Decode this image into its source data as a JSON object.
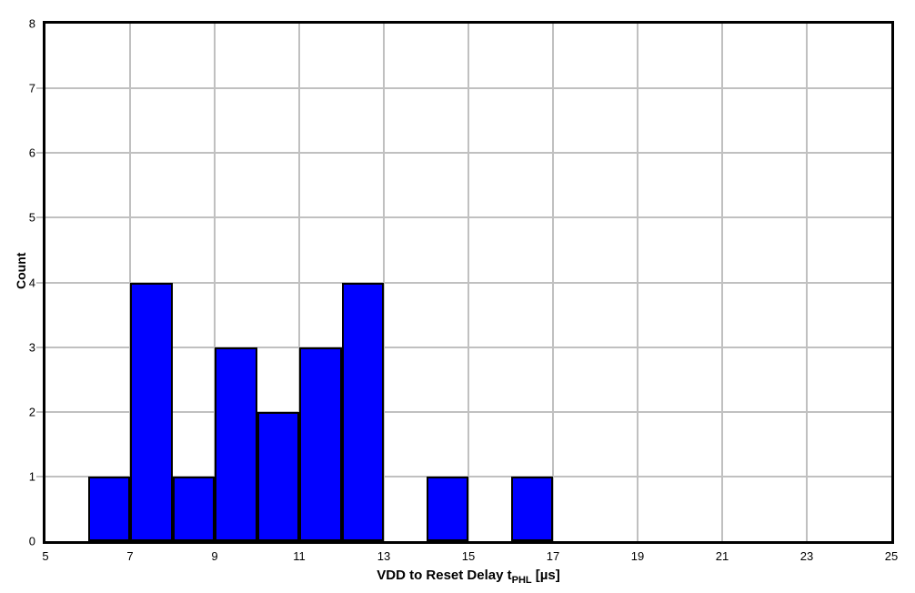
{
  "chart_data": {
    "type": "bar",
    "subtype": "histogram",
    "title": "",
    "xlabel": {
      "main": "VDD to Reset Delay t",
      "sub": "PHL",
      "suffix": " [µs]"
    },
    "ylabel": "Count",
    "xlim": [
      5,
      25
    ],
    "ylim": [
      0,
      8
    ],
    "x_ticks": [
      5,
      7,
      9,
      11,
      13,
      15,
      17,
      19,
      21,
      23,
      25
    ],
    "y_ticks": [
      0,
      1,
      2,
      3,
      4,
      5,
      6,
      7,
      8
    ],
    "grid": true,
    "legend": "none",
    "bins": [
      {
        "x0": 6,
        "x1": 7,
        "count": 1
      },
      {
        "x0": 7,
        "x1": 8,
        "count": 4
      },
      {
        "x0": 8,
        "x1": 9,
        "count": 1
      },
      {
        "x0": 9,
        "x1": 10,
        "count": 3
      },
      {
        "x0": 10,
        "x1": 11,
        "count": 2
      },
      {
        "x0": 11,
        "x1": 12,
        "count": 3
      },
      {
        "x0": 12,
        "x1": 13,
        "count": 4
      },
      {
        "x0": 13,
        "x1": 14,
        "count": 0
      },
      {
        "x0": 14,
        "x1": 15,
        "count": 1
      },
      {
        "x0": 15,
        "x1": 16,
        "count": 0
      },
      {
        "x0": 16,
        "x1": 17,
        "count": 1
      }
    ],
    "colors": {
      "bar_fill": "#0000ff",
      "bar_border": "#000000",
      "grid": "#c0c0c0",
      "axis": "#000000",
      "background": "#ffffff",
      "text": "#000000"
    }
  }
}
